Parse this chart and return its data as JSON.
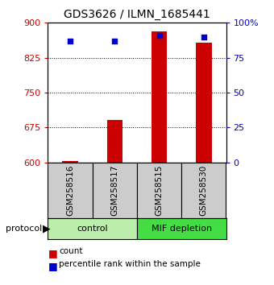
{
  "title": "GDS3626 / ILMN_1685441",
  "samples": [
    "GSM258516",
    "GSM258517",
    "GSM258515",
    "GSM258530"
  ],
  "count_values": [
    603,
    692,
    882,
    858
  ],
  "percentile_values": [
    87,
    87,
    91,
    90
  ],
  "count_baseline": 600,
  "left_ylim": [
    600,
    900
  ],
  "right_ylim": [
    0,
    100
  ],
  "left_yticks": [
    600,
    675,
    750,
    825,
    900
  ],
  "right_yticks": [
    0,
    25,
    50,
    75,
    100
  ],
  "left_ycolor": "#cc0000",
  "right_ycolor": "#0000cc",
  "bar_color": "#cc0000",
  "dot_color": "#0000cc",
  "groups": [
    {
      "label": "control",
      "samples": [
        0,
        1
      ],
      "color": "#bbeeaa"
    },
    {
      "label": "MIF depletion",
      "samples": [
        2,
        3
      ],
      "color": "#44dd44"
    }
  ],
  "protocol_label": "protocol",
  "sample_box_color": "#cccccc",
  "background_color": "#ffffff",
  "legend_count_label": "count",
  "legend_percentile_label": "percentile rank within the sample",
  "title_fontsize": 10,
  "tick_fontsize": 8,
  "bar_width": 0.35
}
